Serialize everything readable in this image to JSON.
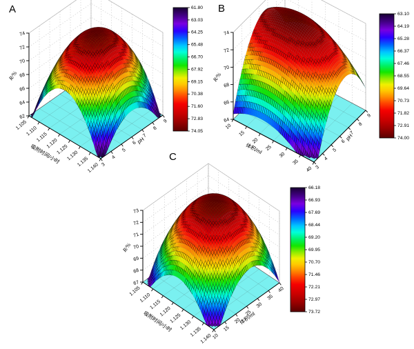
{
  "style": {
    "background": "#ffffff",
    "floor_color": "#7af0f0",
    "axis_color": "#000000",
    "wall_grid_color": "#c8c8c8",
    "box_edge_color": "#b0b0b0",
    "colormap": [
      [
        0.0,
        "#190033"
      ],
      [
        0.07,
        "#46008c"
      ],
      [
        0.13,
        "#7a00e0"
      ],
      [
        0.19,
        "#2a00ff"
      ],
      [
        0.25,
        "#0064ff"
      ],
      [
        0.31,
        "#00c8ff"
      ],
      [
        0.36,
        "#00ffd9"
      ],
      [
        0.42,
        "#00f060"
      ],
      [
        0.47,
        "#14e600"
      ],
      [
        0.52,
        "#8ceb00"
      ],
      [
        0.57,
        "#f0f000"
      ],
      [
        0.62,
        "#ffc800"
      ],
      [
        0.67,
        "#ff8c00"
      ],
      [
        0.72,
        "#ff4600"
      ],
      [
        0.78,
        "#f50000"
      ],
      [
        0.86,
        "#c80000"
      ],
      [
        0.93,
        "#960000"
      ],
      [
        1.0,
        "#5a0000"
      ]
    ]
  },
  "chart_data": [
    {
      "panel": "A",
      "type": "surface3d",
      "x_axis": {
        "title": "吸附时间/小时",
        "ticks": [
          "1.105",
          "1.110",
          "1.115",
          "1.120",
          "1.125",
          "1.130",
          "1.135",
          "1.140"
        ]
      },
      "y_axis": {
        "title": "pH",
        "ticks": [
          "3",
          "4",
          "5",
          "6",
          "7",
          "8",
          "9"
        ]
      },
      "z_axis": {
        "title": "R/%",
        "min": 62,
        "max": 74,
        "ticks": [
          "62",
          "64",
          "66",
          "68",
          "70",
          "72",
          "74"
        ]
      },
      "colorbar": {
        "min": 61.8,
        "max": 74.05,
        "labels": [
          "61.80",
          "63.03",
          "64.25",
          "65.48",
          "66.70",
          "67.92",
          "69.15",
          "70.38",
          "71.60",
          "72.83",
          "74.05"
        ]
      },
      "surface_model": {
        "form": "z = peak - qu*(u-pu)^2 - qv*(v-pv)^2 (u,v normalized 0-1, clipped at floor)",
        "peak": 74.05,
        "pu": 0.5,
        "pv": 0.5,
        "qu": 33,
        "qv": 21,
        "clip_floor": 62
      }
    },
    {
      "panel": "B",
      "type": "surface3d",
      "x_axis": {
        "title": "体积/ml",
        "ticks": [
          "10",
          "15",
          "20",
          "25",
          "30",
          "35",
          "40"
        ]
      },
      "y_axis": {
        "title": "pH",
        "ticks": [
          "3",
          "4",
          "5",
          "6",
          "7",
          "8",
          "9"
        ]
      },
      "z_axis": {
        "title": "R/%",
        "min": 64,
        "max": 74,
        "ticks": [
          "64",
          "66",
          "68",
          "70",
          "72",
          "74"
        ]
      },
      "colorbar": {
        "min": 63.1,
        "max": 74.0,
        "labels": [
          "63.10",
          "64.19",
          "65.28",
          "66.37",
          "67.46",
          "68.55",
          "69.64",
          "70.73",
          "71.82",
          "72.91",
          "74.00"
        ]
      },
      "surface_model": {
        "form": "z = peak - qu*(u-pu)^2 - qv*(v-pv)^2 (u,v normalized 0-1, clipped at floor)",
        "peak": 74.0,
        "pu": 0.35,
        "pv": 0.6,
        "qu": 9,
        "qv": 23,
        "clip_floor": 64
      }
    },
    {
      "panel": "C",
      "type": "surface3d",
      "x_axis": {
        "title": "吸附时间/小时",
        "ticks": [
          "1.105",
          "1.110",
          "1.115",
          "1.120",
          "1.125",
          "1.130",
          "1.135",
          "1.140"
        ]
      },
      "y_axis": {
        "title": "体积/ml",
        "ticks": [
          "10",
          "15",
          "20",
          "25",
          "30",
          "35",
          "40"
        ]
      },
      "z_axis": {
        "title": "R/%",
        "min": 67,
        "max": 73,
        "ticks": [
          "67",
          "68",
          "69",
          "70",
          "71",
          "72",
          "73"
        ]
      },
      "colorbar": {
        "min": 66.18,
        "max": 73.72,
        "labels": [
          "66.18",
          "66.93",
          "67.69",
          "68.44",
          "69.20",
          "69.95",
          "70.70",
          "71.46",
          "72.21",
          "72.97",
          "73.72"
        ]
      },
      "surface_model": {
        "form": "z = peak - qu*(u-pu)^2 - qv*(v-pv)^2 (u,v normalized 0-1, clipped at floor)",
        "peak": 73.72,
        "pu": 0.5,
        "pv": 0.55,
        "qu": 15,
        "qv": 14.5,
        "clip_floor": 67
      }
    }
  ]
}
